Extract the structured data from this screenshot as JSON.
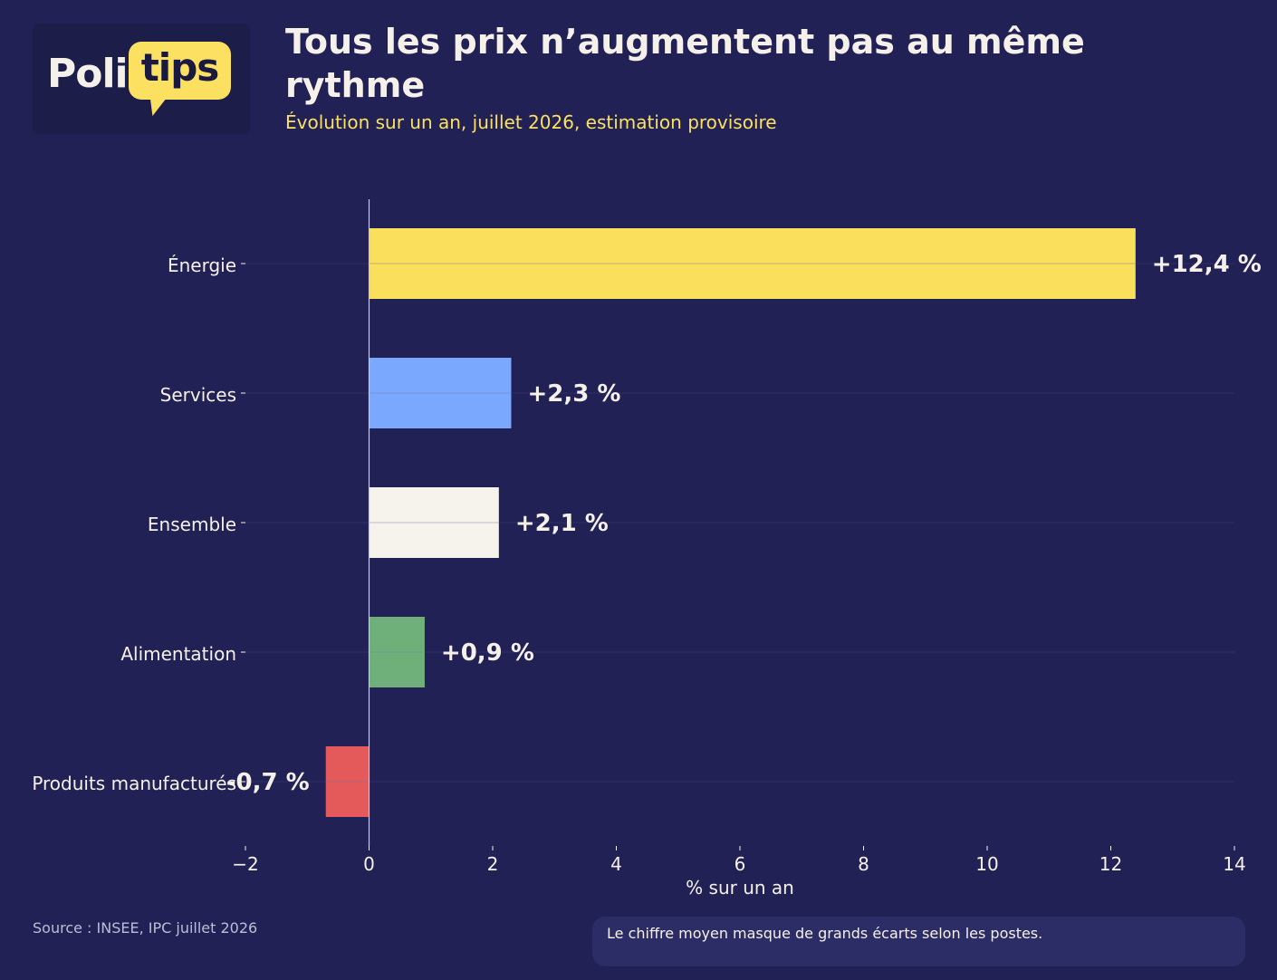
{
  "brand": {
    "part1": "Poli",
    "part2": "tips",
    "colors": {
      "text": "#f5f1ea",
      "bubble": "#fbe062",
      "bubble_text": "#1a1a40"
    }
  },
  "header": {
    "title": "Tous les prix n’augmentent pas au même rythme",
    "subtitle": "Évolution sur un an, juillet 2026, estimation provisoire"
  },
  "chart_data": {
    "type": "bar",
    "orientation": "horizontal",
    "categories": [
      "Énergie",
      "Services",
      "Ensemble",
      "Alimentation",
      "Produits manufacturés"
    ],
    "values": [
      12.4,
      2.3,
      2.1,
      0.9,
      -0.7
    ],
    "value_labels": [
      "+12,4 %",
      "+2,3 %",
      "+2,1 %",
      "+0,9 %",
      "-0,7 %"
    ],
    "colors": [
      "#f9df5b",
      "#7ba8ff",
      "#f5f3ec",
      "#6fb07a",
      "#e45a5a"
    ],
    "xlabel": "% sur un an",
    "xlim": [
      -2,
      14
    ],
    "xticks": [
      -2,
      0,
      2,
      4,
      6,
      8,
      10,
      12,
      14
    ],
    "xtick_labels": [
      "−2",
      "0",
      "2",
      "4",
      "6",
      "8",
      "10",
      "12",
      "14"
    ],
    "grid": "horizontal lines at categories"
  },
  "footer": {
    "source": "Source : INSEE, IPC juillet 2026",
    "note": "Le chiffre moyen masque de grands écarts selon les postes."
  },
  "theme": {
    "background": "#212155",
    "text": "#f5f1ea",
    "accent": "#fbe062",
    "note_bg": "#2c2c66"
  }
}
